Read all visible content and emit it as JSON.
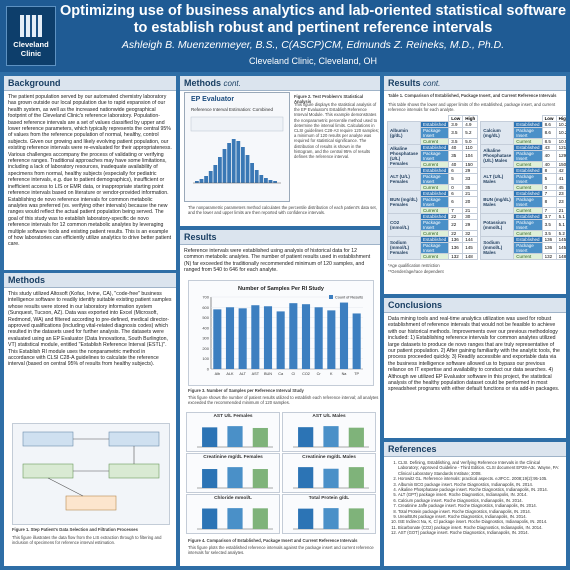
{
  "header": {
    "logo_text": "Cleveland Clinic",
    "title": "Optimizing use of business analytics and lab-oriented statistical software to establish robust and pertinent reference intervals",
    "authors": "Ashleigh B. Muenzenmeyer, B.S., C(ASCP)CM, Edmunds Z. Reineks, M.D., Ph.D.",
    "affiliation": "Cleveland Clinic, Cleveland, OH"
  },
  "background": {
    "title": "Background",
    "text": "The patient population served by our automated chemistry laboratory has grown outside our local population due to rapid expansion of our health system, as well as the increased nationwide geographical footprint of the Cleveland Clinic's reference laboratory. Population-based reference intervals are a set of values classified by upper and lower reference parameters, which typically represents the central 95% of values from the reference population of normal, healthy, control subjects. Given our growing and likely evolving patient population, our existing reference intervals were re-evaluated for their appropriateness. Various challenges accompany the process of validating or verifying reference ranges. Traditional approaches may have some limitations, including a lack of laboratory resources, inadequate availability of specimens from normal, healthy subjects (especially for pediatric reference intervals, e.g. due to patient demographics), insufficient or inefficient access to LIS or EMR data, or inappropriate starting point reference intervals based on literature or vendor-provided information. Establishing de novo reference intervals for common metabolic analytes was preferred (vs. verifying other intervals) because the new ranges would reflect the actual patient population being served. The goal of this study was to establish laboratory-specific de novo reference intervals for 12 common metabolic analytes by leveraging multiple software tools and existing patient results. This is an example of how laboratories can efficiently utilize analytics to drive better patient care."
  },
  "methods": {
    "title": "Methods",
    "text": "This study utilized Altosoft (Kofax, Irvine, CA), \"code-free\" business intelligence software to readily identify suitable existing patient samples whose results were stored in our laboratory information system (Sunquest, Tucson, AZ). Data was exported into Excel (Microsoft, Redmond, WA) and filtered according to pre-defined, medical director-approved qualifications (including vital-related diagnosis codes) which resulted in the datasets used for further analysis. The datasets were evaluated using an EP Evaluator (Data Innovations, South Burlington, VT) statistical module, entitled \"Establish Reference Interval (ESTL)\". This Establish RI module uses the nonparametric method in accordance with CLSI C28-A guidelines to calculate the reference interval (based on central 95% of results from healthy subjects).",
    "figure_caption": "Figure 1. Step Patient's Data Selection and Filtration Processes",
    "figure_note": "This figure illustrates the data flow from the LIS extraction through to filtering and inclusion of specimens for reference interval estimation."
  },
  "methods_cont": {
    "title": "Methods",
    "cont_label": "cont.",
    "ep_title": "EP Evaluator",
    "ep_subtitle": "Reference Interval Estimation: Combined",
    "figure_caption": "Figure 2. Test Problem's Statistical Analysis",
    "right_text": "This figure displays the statistical analysis of the EP Evaluator's Establish Reference Interval Module. This example demonstrates the nonparametric percentile method used to determine the interval limits. Calculations in CLSI guidelines C28-A3 require 120 samples; a minimum of 120 results per analyte was required for statistical significance. The distribution of results is shown in the histogram, and the central 95% of results defines the reference interval.",
    "bottom_text": "The nonparametric parameters method calculates the percentile distribution of each patient's data set, and the lower and upper limits are then reported with confidence intervals."
  },
  "results": {
    "title": "Results",
    "text": "Reference intervals were established using analysis of historical data for 12 common metabolic analytes. The number of patient results used in establishment (N) far exceeded the traditionally recommended minimum of 120 samples, and ranged from 540 to 646 for each analyte.",
    "chart_caption": "Figure 3. Number of Samples per Reference Interval Study",
    "chart_note": "This figure shows the number of patient results utilized to establish each reference interval; all analytes exceeded the recommended minimum of 120 samples.",
    "figure4_caption": "Figure 4. Comparison of Established, Package Insert and Current Reference Intervals",
    "figure4_note": "This figure plots the established reference intervals against the package insert and current reference intervals for selected analytes."
  },
  "chart_data": [
    {
      "type": "bar",
      "title": "Number of Samples Per RI Study",
      "categories": [
        "Alb",
        "ALK",
        "ALT",
        "AST",
        "BUN",
        "Ca",
        "Cl",
        "CO2",
        "Cr",
        "K",
        "Na",
        "TP"
      ],
      "values": [
        580,
        600,
        590,
        620,
        610,
        560,
        640,
        630,
        600,
        570,
        646,
        540
      ],
      "ylim": [
        0,
        700
      ],
      "legend": "top-right",
      "series_name": "Count of Results"
    },
    {
      "type": "bar",
      "title": "AST U/L Females",
      "categories": [
        "Est",
        "Pkg",
        "Cur"
      ],
      "values": [
        32,
        34,
        31
      ]
    },
    {
      "type": "bar",
      "title": "AST U/L Males",
      "categories": [
        "Est",
        "Pkg",
        "Cur"
      ],
      "values": [
        38,
        40,
        37
      ]
    },
    {
      "type": "bar",
      "title": "Creatinine mg/dL Females",
      "categories": [
        "Est",
        "Pkg",
        "Cur"
      ],
      "values": [
        1.0,
        1.1,
        1.0
      ]
    },
    {
      "type": "bar",
      "title": "Creatinine mg/dL Males",
      "categories": [
        "Est",
        "Pkg",
        "Cur"
      ],
      "values": [
        1.3,
        1.2,
        1.3
      ]
    },
    {
      "type": "bar",
      "title": "Chloride mmol/L",
      "categories": [
        "Est",
        "Pkg",
        "Cur"
      ],
      "values": [
        107,
        109,
        108
      ]
    },
    {
      "type": "bar",
      "title": "Total Protein g/dL",
      "categories": [
        "Est",
        "Pkg",
        "Cur"
      ],
      "values": [
        8.1,
        8.3,
        8.2
      ]
    }
  ],
  "results_cont": {
    "title": "Results",
    "cont_label": "cont.",
    "table_caption": "Table 1. Comparison of Established, Package Insert, and Current Reference Intervals",
    "table_note": "This table shows the lower and upper limits of the established, package insert, and current reference intervals for each analyte.",
    "col_low": "Low",
    "col_high": "High",
    "row_labels": [
      "Established",
      "Package Insert",
      "Current"
    ],
    "left": [
      {
        "name": "Albumin (g/dL)",
        "vals": [
          [
            "3.9",
            "4.9"
          ],
          [
            "3.5",
            "5.2"
          ],
          [
            "3.5",
            "5.0"
          ]
        ]
      },
      {
        "name": "Alkaline Phosphatase (U/L) Females",
        "vals": [
          [
            "40",
            "110"
          ],
          [
            "35",
            "104"
          ],
          [
            "40",
            "150"
          ]
        ]
      },
      {
        "name": "ALT (U/L) Females",
        "vals": [
          [
            "6",
            "29"
          ],
          [
            "5",
            "33"
          ],
          [
            "0",
            "35"
          ]
        ]
      },
      {
        "name": "BUN (mg/dL) Females",
        "vals": [
          [
            "6",
            "21"
          ],
          [
            "6",
            "20"
          ],
          [
            "7",
            "21"
          ]
        ]
      },
      {
        "name": "CO2 (mmol/L)",
        "vals": [
          [
            "22",
            "30"
          ],
          [
            "22",
            "29"
          ],
          [
            "22",
            "32"
          ]
        ]
      },
      {
        "name": "Sodium (mmol/L) Females",
        "vals": [
          [
            "136",
            "144"
          ],
          [
            "136",
            "145"
          ],
          [
            "132",
            "148"
          ]
        ]
      }
    ],
    "right": [
      {
        "name": "Calcium (mg/dL)",
        "vals": [
          [
            "8.6",
            "10.2"
          ],
          [
            "8.6",
            "10.2"
          ],
          [
            "8.5",
            "10.5"
          ]
        ]
      },
      {
        "name": "Alkaline Phosphatase (U/L) Males",
        "vals": [
          [
            "43",
            "121"
          ],
          [
            "40",
            "129"
          ],
          [
            "40",
            "150"
          ]
        ]
      },
      {
        "name": "ALT (U/L) Males",
        "vals": [
          [
            "8",
            "42"
          ],
          [
            "5",
            "41"
          ],
          [
            "0",
            "45"
          ]
        ]
      },
      {
        "name": "BUN (mg/dL) Males",
        "vals": [
          [
            "7",
            "23"
          ],
          [
            "8",
            "23"
          ],
          [
            "7",
            "21"
          ]
        ]
      },
      {
        "name": "Potassium (mmol/L)",
        "vals": [
          [
            "3.7",
            "5.1"
          ],
          [
            "3.5",
            "5.1"
          ],
          [
            "3.5",
            "5.2"
          ]
        ]
      },
      {
        "name": "Sodium (mmol/L) Males",
        "vals": [
          [
            "136",
            "145"
          ],
          [
            "136",
            "145"
          ],
          [
            "132",
            "148"
          ]
        ]
      }
    ],
    "footnotes": [
      "*Age qualification restriction",
      "**Gender/age/race dependent"
    ]
  },
  "conclusions": {
    "title": "Conclusions",
    "text": "Data mining tools and real-time analytics utilization was used for robust establishment of reference intervals that would not be feasible to achieve with our historical methods. Improvements over our previous methodology included: 1) Establishing reference intervals for common analytes utilized large datasets to produce de novo ranges that are truly representative of our patient population. 2) After gaining familiarity with the analytic tools, the process proceeded quickly. 3) Readily accessible and exportable data via the business intelligence software allowed us to bypass our previous reliance on IT expertise and availability to conduct our data searches. 4) Although we utilized EP Evaluator software in this project, the statistical analysis of the healthy population dataset could be performed in most spreadsheet programs with either default functions or via add-in packages."
  },
  "references": {
    "title": "References",
    "items": [
      "CLSI. Defining, Establishing, and Verifying Reference Intervals in the Clinical Laboratory; Approved Guideline - Third Edition. CLSI document EP28-A3c. Wayne, PA: Clinical Laboratory Standards Institute; 2008.",
      "Horowitz GL. Reference intervals: practical aspects. eJIFCC. 2008;19(2):95-105.",
      "Albumin BCG package insert. Roche Diagnostics, Indianapolis, IN. 2014.",
      "Alkaline Phosphatase package insert. Roche Diagnostics, Indianapolis, IN. 2014.",
      "ALT (GPT) package insert. Roche Diagnostics, Indianapolis, IN. 2014.",
      "Calcium package insert. Roche Diagnostics, Indianapolis, IN. 2014.",
      "Creatinine Jaffe package insert. Roche Diagnostics, Indianapolis, IN. 2014.",
      "Total Protein package insert. Roche Diagnostics, Indianapolis, IN. 2014.",
      "Urea/BUN package insert. Roche Diagnostics, Indianapolis, IN. 2014.",
      "ISE Indirect Na, K, Cl package insert. Roche Diagnostics, Indianapolis, IN. 2014.",
      "Bicarbonate (CO2) package insert. Roche Diagnostics, Indianapolis, IN. 2014.",
      "AST (GOT) package insert. Roche Diagnostics, Indianapolis, IN. 2014."
    ]
  },
  "colors": {
    "background": "#2e6ea6",
    "header": "#1f5b94",
    "accent_dark": "#2c74b5",
    "accent_light": "#4a90c8",
    "current_green": "#dff0d8"
  }
}
